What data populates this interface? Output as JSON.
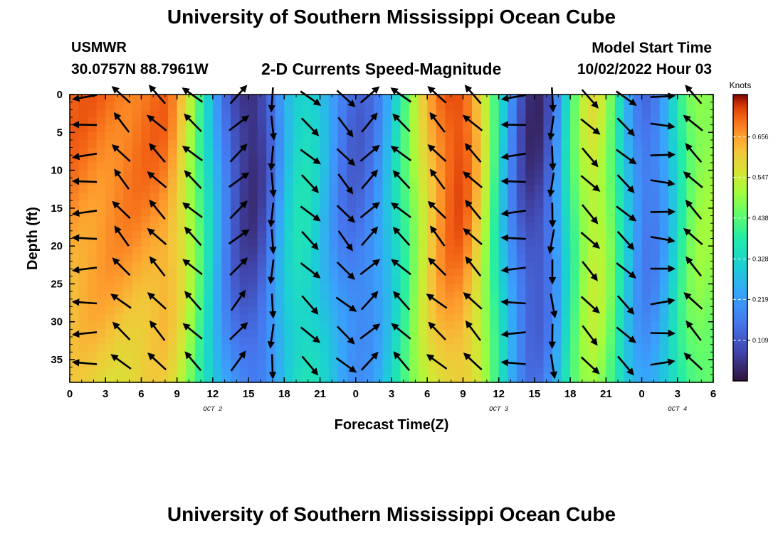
{
  "header": {
    "title": "University of Southern Mississippi Ocean Cube",
    "station": "USMWR",
    "coordinates": "30.0757N  88.7961W",
    "subtitle": "2-D Currents Speed-Magnitude",
    "model_start_label": "Model Start Time",
    "model_start_value": "10/02/2022 Hour 03"
  },
  "footer": {
    "title": "University of Southern Mississippi Ocean Cube"
  },
  "chart_data": {
    "type": "heatmap",
    "title": "2-D Currents Speed-Magnitude",
    "xlabel": "Forecast Time(Z)",
    "ylabel": "Depth (ft)",
    "x_ticks": [
      {
        "hour": 0,
        "label": "0"
      },
      {
        "hour": 3,
        "label": "3"
      },
      {
        "hour": 6,
        "label": "6"
      },
      {
        "hour": 9,
        "label": "9"
      },
      {
        "hour": 12,
        "label": "12"
      },
      {
        "hour": 15,
        "label": "15"
      },
      {
        "hour": 18,
        "label": "18"
      },
      {
        "hour": 21,
        "label": "21"
      },
      {
        "hour": 24,
        "label": "0"
      },
      {
        "hour": 27,
        "label": "3"
      },
      {
        "hour": 30,
        "label": "6"
      },
      {
        "hour": 33,
        "label": "9"
      },
      {
        "hour": 36,
        "label": "12"
      },
      {
        "hour": 39,
        "label": "15"
      },
      {
        "hour": 42,
        "label": "18"
      },
      {
        "hour": 45,
        "label": "21"
      },
      {
        "hour": 48,
        "label": "0"
      },
      {
        "hour": 51,
        "label": "3"
      },
      {
        "hour": 54,
        "label": "6"
      }
    ],
    "day_labels": [
      {
        "hour": 12,
        "label": "OCT 2"
      },
      {
        "hour": 36,
        "label": "OCT 3"
      },
      {
        "hour": 51,
        "label": "OCT 4"
      }
    ],
    "xlim": [
      0,
      54
    ],
    "y_ticks": [
      0,
      5,
      10,
      15,
      20,
      25,
      30,
      35
    ],
    "ylim": [
      0,
      38
    ],
    "y_inverted": true,
    "colorbar": {
      "title": "Knots",
      "ticks": [
        0.109,
        0.219,
        0.328,
        0.438,
        0.547,
        0.656
      ],
      "range": [
        0.0,
        0.77
      ]
    },
    "speed_peaks": [
      {
        "hour": 7.5,
        "speed": 0.7
      },
      {
        "hour": 15.2,
        "speed": 0.03
      },
      {
        "hour": 19.5,
        "speed": 0.34
      },
      {
        "hour": 24.0,
        "speed": 0.12
      },
      {
        "hour": 32.5,
        "speed": 0.74
      },
      {
        "hour": 39.0,
        "speed": 0.04
      },
      {
        "hour": 44.0,
        "speed": 0.56
      },
      {
        "hour": 48.5,
        "speed": 0.14
      },
      {
        "hour": 53.0,
        "speed": 0.5
      }
    ],
    "vector_depths_ft": [
      0,
      4,
      8,
      11.5,
      15.5,
      19,
      23,
      27.5,
      31.5,
      35.5
    ],
    "vector_columns": [
      {
        "hour": 1.5,
        "dir": "W"
      },
      {
        "hour": 4.5,
        "dir": "NW"
      },
      {
        "hour": 7.5,
        "dir": "NW"
      },
      {
        "hour": 10.5,
        "dir": "NW"
      },
      {
        "hour": 14,
        "dir": "NE"
      },
      {
        "hour": 17,
        "dir": "S"
      },
      {
        "hour": 20,
        "dir": "SE"
      },
      {
        "hour": 23,
        "dir": "SE"
      },
      {
        "hour": 25,
        "dir": "NE"
      },
      {
        "hour": 28,
        "dir": "NW"
      },
      {
        "hour": 31,
        "dir": "NW"
      },
      {
        "hour": 34,
        "dir": "NW"
      },
      {
        "hour": 37.5,
        "dir": "W"
      },
      {
        "hour": 40.5,
        "dir": "S"
      },
      {
        "hour": 43.5,
        "dir": "SE"
      },
      {
        "hour": 46.5,
        "dir": "SE"
      },
      {
        "hour": 49.5,
        "dir": "E"
      },
      {
        "hour": 52.5,
        "dir": "NW"
      }
    ]
  }
}
